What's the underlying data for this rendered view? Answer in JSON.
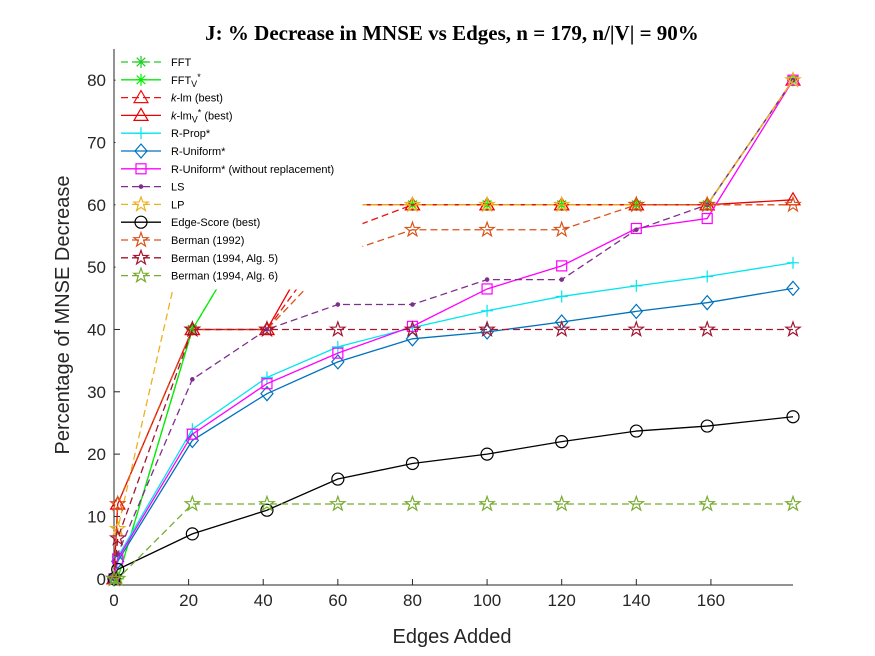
{
  "chart_data": {
    "type": "line",
    "title": "J: % Decrease in MNSE vs Edges, n = 179, n/|V| = 90%",
    "xlabel": "Edges Added",
    "ylabel": "Percentage of MNSE Decrease",
    "xlim": [
      0,
      182
    ],
    "ylim": [
      -1,
      85
    ],
    "xticks": [
      0,
      20,
      40,
      60,
      80,
      100,
      120,
      140,
      160
    ],
    "yticks": [
      0,
      10,
      20,
      30,
      40,
      50,
      60,
      70,
      80
    ],
    "legend_position": "top-left",
    "grid": false,
    "series": [
      {
        "name": "FFT",
        "legend_main": "FFT",
        "legend_sub": "",
        "legend_sup": "",
        "legend_tail": "",
        "color": "#22cc22",
        "dash": "7,4",
        "marker": "asterisk",
        "x": [
          0,
          1,
          21,
          41,
          60,
          80,
          100,
          120,
          140,
          159,
          182
        ],
        "y": [
          0,
          0,
          40,
          60,
          60,
          60,
          60,
          60,
          60,
          60,
          80
        ]
      },
      {
        "name": "FFT_V*",
        "legend_main": "FFT",
        "legend_sub": "V",
        "legend_sup": "*",
        "legend_tail": "",
        "color": "#00ee00",
        "dash": "",
        "marker": "asterisk",
        "x": [
          0,
          1,
          21,
          41,
          60,
          80,
          100,
          120,
          140,
          159,
          182
        ],
        "y": [
          0,
          0,
          40,
          60,
          60,
          60,
          60,
          60,
          60,
          60,
          80
        ]
      },
      {
        "name": "k-lm (best)",
        "legend_main": "k",
        "legend_sub": "",
        "legend_sup": "",
        "legend_tail": "-lm (best)",
        "italic_k": true,
        "color": "#ee1111",
        "dash": "7,4",
        "marker": "triangle",
        "x": [
          0,
          1,
          21,
          41,
          60,
          80,
          100,
          120,
          140,
          159,
          182
        ],
        "y": [
          0,
          12,
          40,
          40,
          55.5,
          60,
          60,
          60,
          60,
          60,
          80
        ]
      },
      {
        "name": "k-lm_V* (best)",
        "legend_main": "k",
        "legend_sub": "V",
        "legend_sup": "*",
        "legend_tail": " (best)",
        "italic_k": true,
        "mid": "-lm",
        "color": "#ee0000",
        "dash": "",
        "marker": "triangle",
        "x": [
          0,
          1,
          21,
          41,
          60,
          80,
          100,
          120,
          140,
          159,
          182
        ],
        "y": [
          0,
          12,
          40,
          40,
          60,
          60,
          60,
          60,
          60,
          60,
          60.8
        ]
      },
      {
        "name": "R-Prop*",
        "legend_main": "R-Prop*",
        "legend_sub": "",
        "legend_sup": "",
        "legend_tail": "",
        "color": "#00e5ee",
        "dash": "",
        "marker": "plus",
        "x": [
          0,
          1,
          21,
          41,
          60,
          80,
          100,
          120,
          140,
          159,
          182
        ],
        "y": [
          0,
          3.5,
          24,
          32.3,
          37.2,
          40.3,
          43,
          45.3,
          47,
          48.5,
          50.7
        ]
      },
      {
        "name": "R-Uniform*",
        "legend_main": "R-Uniform*",
        "legend_sub": "",
        "legend_sup": "",
        "legend_tail": "",
        "color": "#0072bd",
        "dash": "",
        "marker": "diamond",
        "x": [
          0,
          1,
          21,
          41,
          60,
          80,
          100,
          120,
          140,
          159,
          182
        ],
        "y": [
          0,
          2.8,
          22.2,
          29.7,
          34.8,
          38.5,
          39.6,
          41.2,
          42.9,
          44.3,
          46.6
        ]
      },
      {
        "name": "R-Uniform* (without replacement)",
        "legend_main": "R-Uniform* (without replacement)",
        "legend_sub": "",
        "legend_sup": "",
        "legend_tail": "",
        "color": "#ff00ff",
        "dash": "",
        "marker": "square",
        "x": [
          0,
          1,
          21,
          41,
          60,
          80,
          100,
          120,
          140,
          159,
          182
        ],
        "y": [
          0,
          3.2,
          23.2,
          31.3,
          36.2,
          40.5,
          46.5,
          50.2,
          56.2,
          57.8,
          80
        ]
      },
      {
        "name": "LS",
        "legend_main": "LS",
        "legend_sub": "",
        "legend_sup": "",
        "legend_tail": "",
        "color": "#7e2f8e",
        "dash": "7,4",
        "marker": "dot",
        "x": [
          0,
          1,
          21,
          41,
          60,
          80,
          100,
          120,
          140,
          159,
          182
        ],
        "y": [
          0,
          4,
          32,
          40,
          44,
          44,
          48,
          48,
          56,
          60,
          80
        ]
      },
      {
        "name": "LP",
        "legend_main": "LP",
        "legend_sub": "",
        "legend_sup": "",
        "legend_tail": "",
        "color": "#edb120",
        "dash": "7,4",
        "marker": "star",
        "x": [
          0,
          1,
          21,
          41,
          60,
          80,
          100,
          120,
          140,
          159,
          182
        ],
        "y": [
          0,
          8,
          60,
          60,
          60,
          60,
          60,
          60,
          60,
          60,
          80
        ]
      },
      {
        "name": "Edge-Score (best)",
        "legend_main": "Edge-Score (best)",
        "legend_sub": "",
        "legend_sup": "",
        "legend_tail": "",
        "color": "#000000",
        "dash": "",
        "marker": "circle",
        "x": [
          0,
          1,
          21,
          41,
          60,
          80,
          100,
          120,
          140,
          159,
          182
        ],
        "y": [
          0,
          1.5,
          7.2,
          11,
          16,
          18.5,
          20,
          22,
          23.7,
          24.5,
          26
        ]
      },
      {
        "name": "Berman (1992)",
        "legend_main": "Berman (1992)",
        "legend_sub": "",
        "legend_sup": "",
        "legend_tail": "",
        "color": "#d95319",
        "dash": "7,4",
        "marker": "star",
        "x": [
          0,
          1,
          21,
          41,
          60,
          80,
          100,
          120,
          140,
          159,
          182
        ],
        "y": [
          0,
          12,
          40,
          40,
          52,
          56,
          56,
          56,
          60,
          60,
          60
        ]
      },
      {
        "name": "Berman (1994, Alg. 5)",
        "legend_main": "Berman (1994, Alg. 5)",
        "legend_sub": "",
        "legend_sup": "",
        "legend_tail": "",
        "color": "#a2142f",
        "dash": "7,4",
        "marker": "star",
        "x": [
          0,
          1,
          21,
          41,
          60,
          80,
          100,
          120,
          140,
          159,
          182
        ],
        "y": [
          0,
          6.5,
          40,
          40,
          40,
          40,
          40,
          40,
          40,
          40,
          40
        ]
      },
      {
        "name": "Berman (1994, Alg. 6)",
        "legend_main": "Berman (1994, Alg. 6)",
        "legend_sub": "",
        "legend_sup": "",
        "legend_tail": "",
        "color": "#77ac30",
        "dash": "7,4",
        "marker": "star",
        "x": [
          0,
          1,
          21,
          41,
          60,
          80,
          100,
          120,
          140,
          159,
          182
        ],
        "y": [
          0,
          0,
          12,
          12,
          12,
          12,
          12,
          12,
          12,
          12,
          12
        ]
      }
    ]
  }
}
